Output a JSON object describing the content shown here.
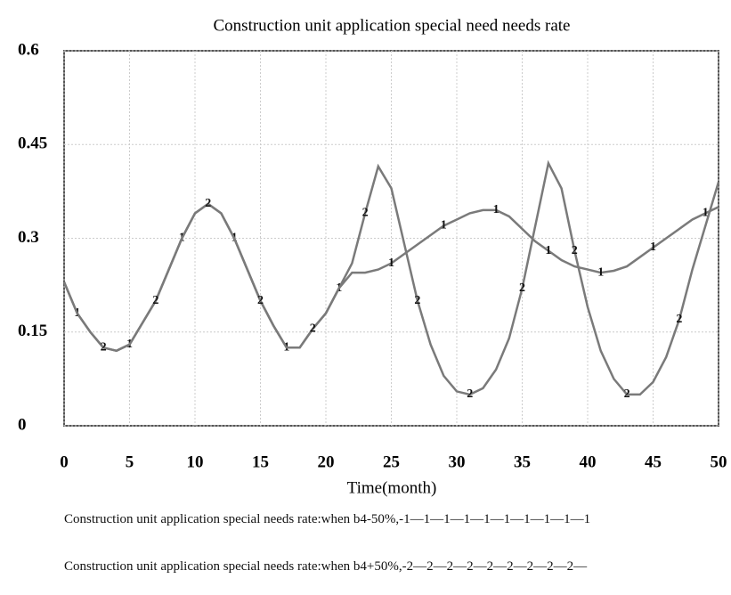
{
  "chart_data": {
    "type": "line",
    "title": "Construction unit application special need needs rate",
    "xlabel": "Time(month)",
    "x": [
      0,
      1,
      2,
      3,
      4,
      5,
      6,
      7,
      8,
      9,
      10,
      11,
      12,
      13,
      14,
      15,
      16,
      17,
      18,
      19,
      20,
      21,
      22,
      23,
      24,
      25,
      26,
      27,
      28,
      29,
      30,
      31,
      32,
      33,
      34,
      35,
      36,
      37,
      38,
      39,
      40,
      41,
      42,
      43,
      44,
      45,
      46,
      47,
      48,
      49,
      50
    ],
    "xlim": [
      0,
      50
    ],
    "xticks": [
      0,
      5,
      10,
      15,
      20,
      25,
      30,
      35,
      40,
      45,
      50
    ],
    "ylim": [
      0,
      0.6
    ],
    "yticks": [
      0,
      0.15,
      0.3,
      0.45,
      0.6
    ],
    "grid": true,
    "series": [
      {
        "name": "Construction unit application special needs rate:when b4-50%,-1—1—1—1—1—1—1—1—1—1",
        "marker": "1",
        "color": "#7a7a7a",
        "values": [
          0.23,
          0.18,
          0.15,
          0.125,
          0.12,
          0.13,
          0.165,
          0.2,
          0.25,
          0.3,
          0.34,
          0.355,
          0.34,
          0.3,
          0.25,
          0.2,
          0.16,
          0.125,
          0.125,
          0.155,
          0.18,
          0.22,
          0.245,
          0.245,
          0.25,
          0.26,
          0.275,
          0.29,
          0.305,
          0.32,
          0.33,
          0.34,
          0.345,
          0.345,
          0.335,
          0.315,
          0.295,
          0.28,
          0.265,
          0.255,
          0.25,
          0.245,
          0.248,
          0.255,
          0.27,
          0.285,
          0.3,
          0.315,
          0.33,
          0.34,
          0.35
        ]
      },
      {
        "name": "Construction unit application special needs rate:when b4+50%,-2—2—2—2—2—2—2—2—2—",
        "marker": "2",
        "color": "#7a7a7a",
        "values": [
          0.23,
          0.18,
          0.15,
          0.125,
          0.12,
          0.13,
          0.165,
          0.2,
          0.25,
          0.3,
          0.34,
          0.355,
          0.34,
          0.3,
          0.25,
          0.2,
          0.16,
          0.125,
          0.125,
          0.155,
          0.18,
          0.22,
          0.26,
          0.34,
          0.415,
          0.38,
          0.29,
          0.2,
          0.13,
          0.08,
          0.055,
          0.05,
          0.06,
          0.09,
          0.14,
          0.22,
          0.32,
          0.42,
          0.38,
          0.28,
          0.19,
          0.12,
          0.075,
          0.05,
          0.05,
          0.07,
          0.11,
          0.17,
          0.25,
          0.32,
          0.39
        ]
      }
    ]
  }
}
